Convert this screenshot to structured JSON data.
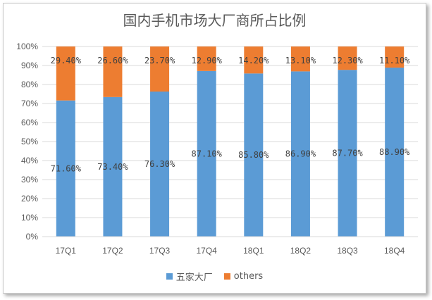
{
  "chart_data": {
    "type": "bar",
    "stacked": true,
    "title": "国内手机市场大厂商所占比例",
    "categories": [
      "17Q1",
      "17Q2",
      "17Q3",
      "17Q4",
      "18Q1",
      "18Q2",
      "18Q3",
      "18Q4"
    ],
    "series": [
      {
        "name": "五家大厂",
        "color": "#5b9bd5",
        "values": [
          71.6,
          73.4,
          76.3,
          87.1,
          85.8,
          86.9,
          87.7,
          88.9
        ],
        "labels": [
          "71.60%",
          "73.40%",
          "76.30%",
          "87.10%",
          "85.80%",
          "86.90%",
          "87.70%",
          "88.90%"
        ]
      },
      {
        "name": "others",
        "color": "#ed7d31",
        "values": [
          29.4,
          26.6,
          23.7,
          12.9,
          14.2,
          13.1,
          12.3,
          11.1
        ],
        "labels": [
          "29.40%",
          "26.60%",
          "23.70%",
          "12.90%",
          "14.20%",
          "13.10%",
          "12.30%",
          "11.10%"
        ]
      }
    ],
    "ylim": [
      0,
      100
    ],
    "yticks": [
      "0%",
      "10%",
      "20%",
      "30%",
      "40%",
      "50%",
      "60%",
      "70%",
      "80%",
      "90%",
      "100%"
    ],
    "grid": true,
    "legend_position": "bottom"
  }
}
